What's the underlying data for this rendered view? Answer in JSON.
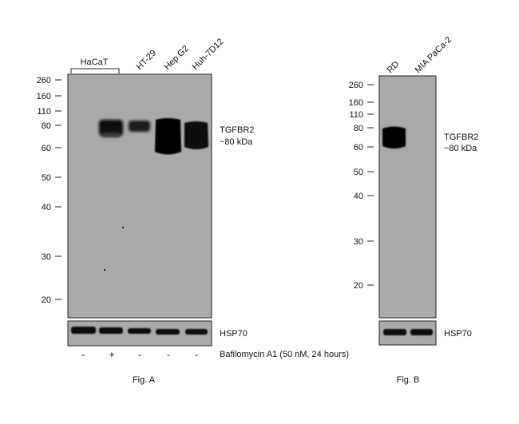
{
  "figA": {
    "group_label": "HaCaT",
    "lanes": [
      "HT-29",
      "Hep G2",
      "Huh-7D12"
    ],
    "mw_markers": [
      "260",
      "160",
      "110",
      "80",
      "60",
      "50",
      "40",
      "30",
      "20"
    ],
    "target_label": "TGFBR2",
    "target_size": "~80 kDa",
    "loading_label": "HSP70",
    "treatment_signs": [
      "-",
      "+",
      "-",
      "-",
      "-"
    ],
    "treatment_label": "Bafilomycin A1 (50 nM, 24 hours)",
    "caption": "Fig. A"
  },
  "figB": {
    "lanes": [
      "RD",
      "MIA PaCa-2"
    ],
    "mw_markers": [
      "260",
      "160",
      "110",
      "80",
      "60",
      "50",
      "40",
      "30",
      "20"
    ],
    "target_label": "TGFBR2",
    "target_size": "~80 kDa",
    "loading_label": "HSP70",
    "caption": "Fig. B"
  },
  "colors": {
    "membrane": "#a9a9a9",
    "band": "#0a0a0a",
    "frame": "#222222"
  }
}
